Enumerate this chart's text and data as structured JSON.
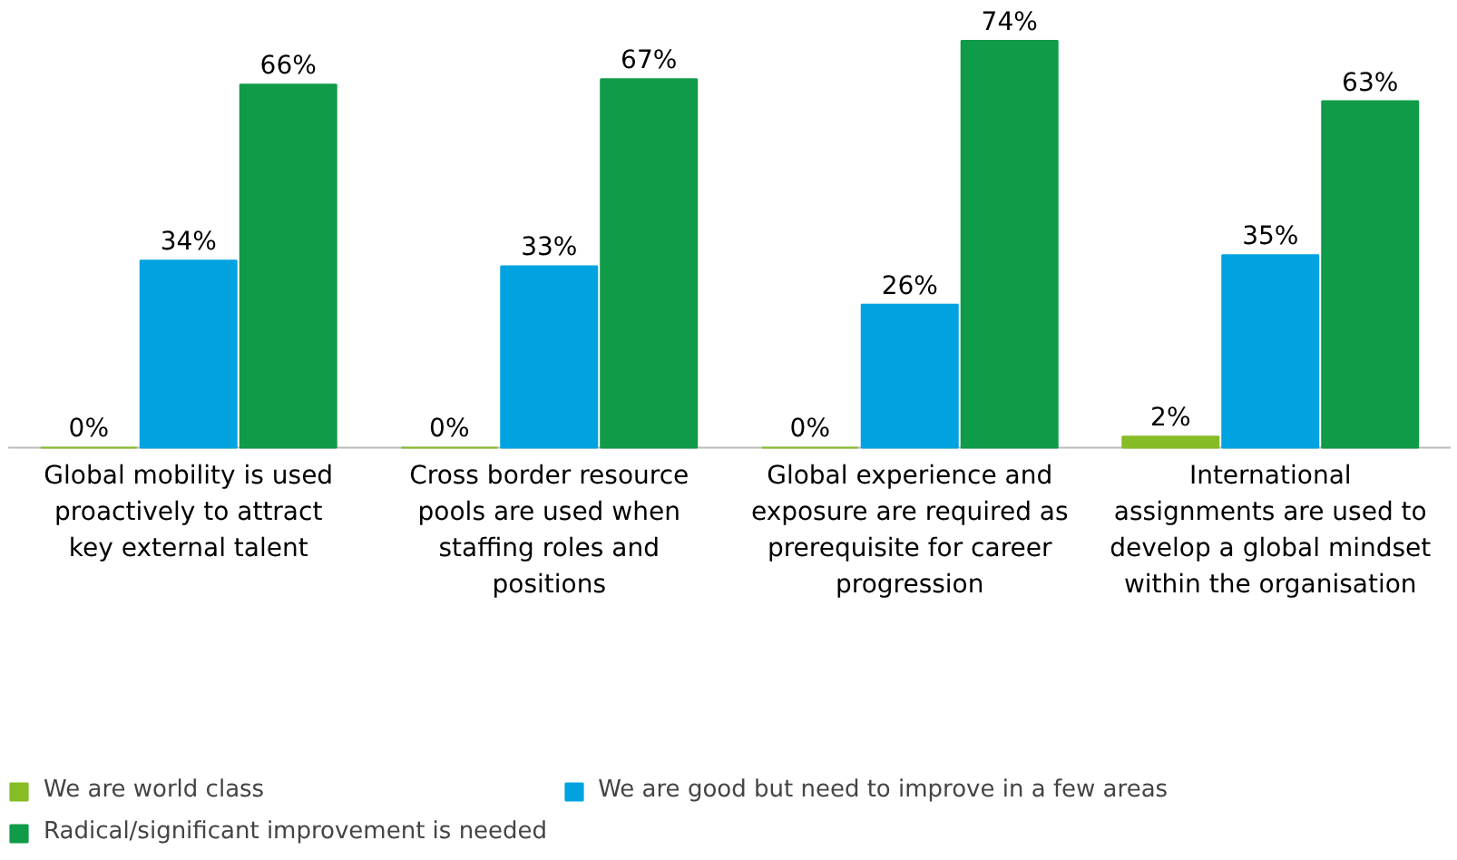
{
  "chart_data": {
    "type": "bar",
    "categories": [
      "Global mobility is used proactively to attract key external talent",
      "Cross border resource pools are used when staffing roles and positions",
      "Global experience and exposure are required as prerequisite for career progression",
      "International assignments are used to develop a global mindset within the organisation"
    ],
    "series": [
      {
        "name": "We are world class",
        "color": "#86bc25",
        "values": [
          0,
          0,
          0,
          2
        ],
        "value_labels": [
          "0%",
          "0%",
          "0%",
          "2%"
        ]
      },
      {
        "name": "We are good but need to improve in a few areas",
        "color": "#00a3e0",
        "values": [
          34,
          33,
          26,
          35
        ],
        "value_labels": [
          "34%",
          "33%",
          "26%",
          "35%"
        ]
      },
      {
        "name": "Radical/significant improvement is needed",
        "color": "#109b48",
        "values": [
          66,
          67,
          74,
          63
        ],
        "value_labels": [
          "66%",
          "67%",
          "74%",
          "63%"
        ]
      }
    ],
    "legend": "bottom"
  }
}
